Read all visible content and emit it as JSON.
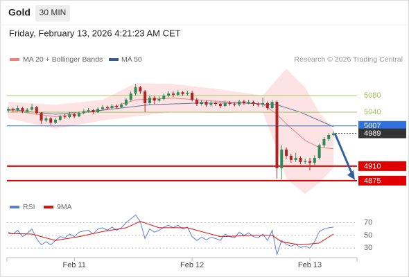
{
  "chart_data": {
    "type": "candlestick",
    "title": "Gold",
    "interval": "30 MIN",
    "timestamp": "Friday, February 13, 2026 4:21:23 AM CET",
    "credit": "Research © 2026 Trading Central",
    "ylim": [
      4838,
      5157
    ],
    "xlim": [
      -0.3,
      74
    ],
    "xticks": [
      {
        "value": 14,
        "label": "Feb 11"
      },
      {
        "value": 39,
        "label": "Feb 12"
      },
      {
        "value": 64,
        "label": "Feb 13"
      }
    ],
    "up_color": "#2e8b57",
    "down_color": "#b22222",
    "ohlc": {
      "open": [
        5044,
        5048,
        5045,
        5050,
        5042,
        5046,
        5052,
        5038,
        5020,
        5025,
        5015,
        5022,
        5030,
        5028,
        5035,
        5030,
        5038,
        5042,
        5045,
        5040,
        5048,
        5052,
        5050,
        5055,
        5052,
        5058,
        5070,
        5085,
        5100,
        5090,
        5062,
        5075,
        5068,
        5072,
        5080,
        5085,
        5082,
        5088,
        5084,
        5087,
        5070,
        5060,
        5065,
        5058,
        5062,
        5060,
        5055,
        5063,
        5060,
        5058,
        5066,
        5062,
        5065,
        5060,
        5058,
        5062,
        5050,
        5065,
        4905,
        4950,
        4935,
        4925,
        4930,
        4920,
        4922,
        4918,
        4930,
        4960,
        4975,
        4985
      ],
      "high": [
        5052,
        5051,
        5056,
        5053,
        5050,
        5060,
        5055,
        5040,
        5030,
        5028,
        5026,
        5034,
        5035,
        5040,
        5038,
        5042,
        5047,
        5050,
        5048,
        5052,
        5057,
        5056,
        5060,
        5059,
        5063,
        5074,
        5090,
        5108,
        5104,
        5094,
        5080,
        5078,
        5078,
        5085,
        5091,
        5090,
        5093,
        5091,
        5092,
        5090,
        5074,
        5070,
        5068,
        5067,
        5066,
        5063,
        5068,
        5067,
        5064,
        5070,
        5070,
        5070,
        5068,
        5064,
        5075,
        5066,
        5070,
        5068,
        4960,
        4955,
        4940,
        4942,
        4934,
        4928,
        4930,
        4936,
        4964,
        4980,
        4990,
        4994
      ],
      "low": [
        5040,
        5041,
        5043,
        5038,
        5039,
        5044,
        5034,
        5012,
        5016,
        5010,
        5012,
        5018,
        5024,
        5025,
        5026,
        5028,
        5035,
        5039,
        5036,
        5038,
        5045,
        5046,
        5047,
        5048,
        5050,
        5055,
        5066,
        5080,
        5084,
        5040,
        5058,
        5060,
        5064,
        5068,
        5076,
        5077,
        5079,
        5080,
        5080,
        5066,
        5055,
        5056,
        5053,
        5054,
        5055,
        5050,
        5052,
        5056,
        5054,
        5055,
        5058,
        5059,
        5055,
        5053,
        5052,
        5045,
        5048,
        4880,
        4878,
        4928,
        4918,
        4920,
        4914,
        4915,
        4900,
        4912,
        4926,
        4955,
        4970,
        4982
      ],
      "close": [
        5048,
        5045,
        5050,
        5042,
        5046,
        5052,
        5038,
        5020,
        5025,
        5015,
        5022,
        5030,
        5028,
        5035,
        5030,
        5038,
        5042,
        5045,
        5040,
        5048,
        5052,
        5050,
        5055,
        5052,
        5058,
        5070,
        5085,
        5100,
        5090,
        5062,
        5075,
        5068,
        5072,
        5080,
        5085,
        5082,
        5088,
        5084,
        5087,
        5070,
        5060,
        5065,
        5058,
        5062,
        5060,
        5055,
        5063,
        5060,
        5058,
        5066,
        5062,
        5065,
        5060,
        5058,
        5062,
        5050,
        5065,
        4905,
        4950,
        4935,
        4925,
        4930,
        4920,
        4922,
        4918,
        4930,
        4960,
        4975,
        4985,
        4989
      ]
    },
    "bollinger": {
      "name": "MA 20 + Bollinger Bands",
      "color": "#f08080",
      "band_color": "#fde0e0",
      "x": [
        0,
        10,
        20,
        27,
        35,
        45,
        54,
        57,
        59,
        63,
        66,
        69
      ],
      "upper": [
        5065,
        5058,
        5070,
        5110,
        5108,
        5095,
        5080,
        5120,
        5145,
        5100,
        5040,
        4998
      ],
      "middle": [
        5045,
        5029,
        5045,
        5070,
        5074,
        5066,
        5060,
        5035,
        5012,
        4972,
        4955,
        4952
      ],
      "lower": [
        5025,
        5000,
        5020,
        5030,
        5040,
        5038,
        5040,
        4950,
        4880,
        4843,
        4870,
        4905
      ]
    },
    "ma50": {
      "name": "MA 50",
      "color": "#3a5a8c",
      "x": [
        0,
        10,
        20,
        30,
        40,
        50,
        57,
        62,
        66,
        69
      ],
      "values": [
        5047,
        5035,
        5045,
        5058,
        5062,
        5062,
        5058,
        5040,
        5020,
        5005
      ]
    },
    "levels": [
      {
        "value": 5080,
        "color": "#9cc65a",
        "box": false
      },
      {
        "value": 5040,
        "color": "#9cc65a",
        "box": false
      },
      {
        "value": 5007,
        "color": "#2f6fe0",
        "box": true
      },
      {
        "value": 4989,
        "color": "#333333",
        "box": true,
        "dotted": true
      },
      {
        "value": 4910,
        "color": "#e00000",
        "box": true
      },
      {
        "value": 4875,
        "color": "#e00000",
        "box": true
      }
    ],
    "forecast_color": "#2f5f9f",
    "indicator": {
      "type": "line",
      "ylim": [
        15,
        88
      ],
      "yticks": [
        30,
        50,
        70
      ],
      "series": [
        {
          "name": "RSI",
          "color": "#5b7fd6",
          "values": [
            55,
            52,
            58,
            48,
            53,
            60,
            45,
            35,
            40,
            35,
            42,
            48,
            46,
            52,
            48,
            55,
            57,
            58,
            52,
            60,
            62,
            58,
            63,
            58,
            62,
            70,
            76,
            82,
            72,
            45,
            60,
            55,
            58,
            63,
            66,
            62,
            66,
            60,
            63,
            48,
            42,
            47,
            43,
            47,
            45,
            42,
            52,
            48,
            46,
            55,
            50,
            54,
            48,
            46,
            52,
            42,
            58,
            20,
            42,
            36,
            33,
            36,
            31,
            33,
            30,
            40,
            56,
            60,
            62,
            63
          ]
        },
        {
          "name": "9MA",
          "color": "#e01010",
          "x": [
            0,
            5,
            10,
            15,
            20,
            25,
            28,
            32,
            38,
            45,
            52,
            56,
            58,
            62,
            66,
            69
          ],
          "values": [
            53,
            52,
            42,
            48,
            56,
            62,
            72,
            62,
            62,
            48,
            50,
            50,
            40,
            35,
            38,
            52
          ]
        }
      ]
    }
  }
}
